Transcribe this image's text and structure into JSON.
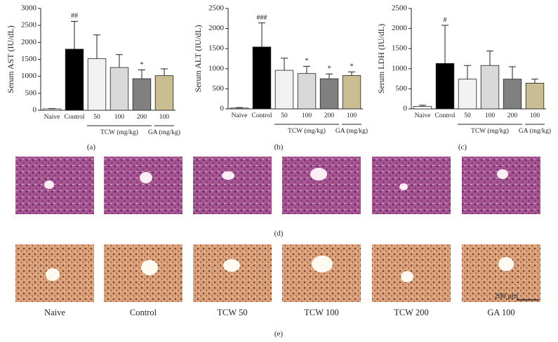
{
  "chart_data": [
    {
      "type": "bar",
      "panel": "(a)",
      "ylabel": "Serum AST (IU/dL)",
      "categories": [
        "Naive",
        "Control",
        "50",
        "100",
        "200",
        "100"
      ],
      "values": [
        40,
        1800,
        1520,
        1260,
        930,
        1020
      ],
      "errors": [
        10,
        820,
        700,
        380,
        260,
        200
      ],
      "annotations": [
        null,
        "##",
        null,
        null,
        "*",
        null
      ],
      "colors": [
        "#ffffff",
        "#000000",
        "#f2f2f2",
        "#d9d9d9",
        "#808080",
        "#c9bd91"
      ],
      "groups": [
        "TCW (mg/kg)",
        "GA (mg/kg)"
      ],
      "ylim": [
        0,
        3000
      ],
      "yticks": [
        0,
        500,
        1000,
        1500,
        2000,
        2500,
        3000
      ]
    },
    {
      "type": "bar",
      "panel": "(b)",
      "ylabel": "Serum ALT (IU/dL)",
      "categories": [
        "Naive",
        "Control",
        "50",
        "100",
        "200",
        "100"
      ],
      "values": [
        20,
        1540,
        960,
        880,
        750,
        830
      ],
      "errors": [
        10,
        600,
        300,
        180,
        120,
        90
      ],
      "annotations": [
        null,
        "###",
        null,
        "*",
        "*",
        "*"
      ],
      "colors": [
        "#ffffff",
        "#000000",
        "#f2f2f2",
        "#d9d9d9",
        "#808080",
        "#c9bd91"
      ],
      "groups": [
        "TCW (mg/kg)",
        "GA (mg/kg)"
      ],
      "ylim": [
        0,
        2500
      ],
      "yticks": [
        0,
        500,
        1000,
        1500,
        2000,
        2500
      ]
    },
    {
      "type": "bar",
      "panel": "(c)",
      "ylabel": "Serum LDH (IU/dL)",
      "categories": [
        "Naive",
        "Control",
        "50",
        "100",
        "200",
        "100"
      ],
      "values": [
        60,
        1130,
        740,
        1080,
        740,
        640
      ],
      "errors": [
        30,
        950,
        340,
        360,
        310,
        100
      ],
      "annotations": [
        null,
        "#",
        null,
        null,
        null,
        null
      ],
      "colors": [
        "#ffffff",
        "#000000",
        "#f2f2f2",
        "#d9d9d9",
        "#808080",
        "#c9bd91"
      ],
      "groups": [
        "TCW (mg/kg)",
        "GA (mg/kg)"
      ],
      "ylim": [
        0,
        2500
      ],
      "yticks": [
        0,
        500,
        1000,
        1500,
        2000,
        2500
      ]
    }
  ],
  "histology": {
    "he_panel": "(d)",
    "ihc_panel": "(e)",
    "captions": [
      "Naive",
      "Control",
      "TCW 50",
      "TCW 100",
      "TCW 200",
      "GA 100"
    ],
    "scale_bar": "200 μm"
  }
}
